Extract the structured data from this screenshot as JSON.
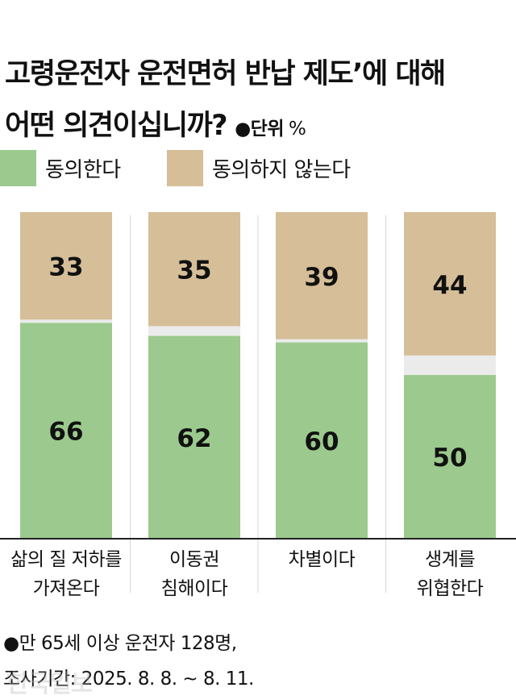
{
  "title_line1": "고령운전자 운전면허 반납 제도’에 대해",
  "title_line2": "어떤 의견이십니까?",
  "unit_label": "●단위",
  "unit_symbol": "%",
  "colors": {
    "agree": "#9cca8e",
    "disagree": "#d5be98",
    "gap": "#ebebeb"
  },
  "chart_data": {
    "type": "bar",
    "stacked": true,
    "categories": [
      [
        "삶의 질 저하를",
        "가져온다"
      ],
      [
        "이동권",
        "침해이다"
      ],
      [
        "차별이다"
      ],
      [
        "생계를",
        "위협한다"
      ]
    ],
    "series": [
      {
        "name": "동의한다",
        "values": [
          66,
          62,
          60,
          50
        ]
      },
      {
        "name": "동의하지 않는다",
        "values": [
          33,
          35,
          39,
          44
        ]
      }
    ],
    "ylim": [
      0,
      100
    ],
    "legend": "top-left",
    "grid": false
  },
  "footnote_line1": "●만 65세 이상 운전자 128명,",
  "footnote_line2": "조사기간: 2025. 8. 8. ~ 8. 11.",
  "watermark": "한국일보"
}
